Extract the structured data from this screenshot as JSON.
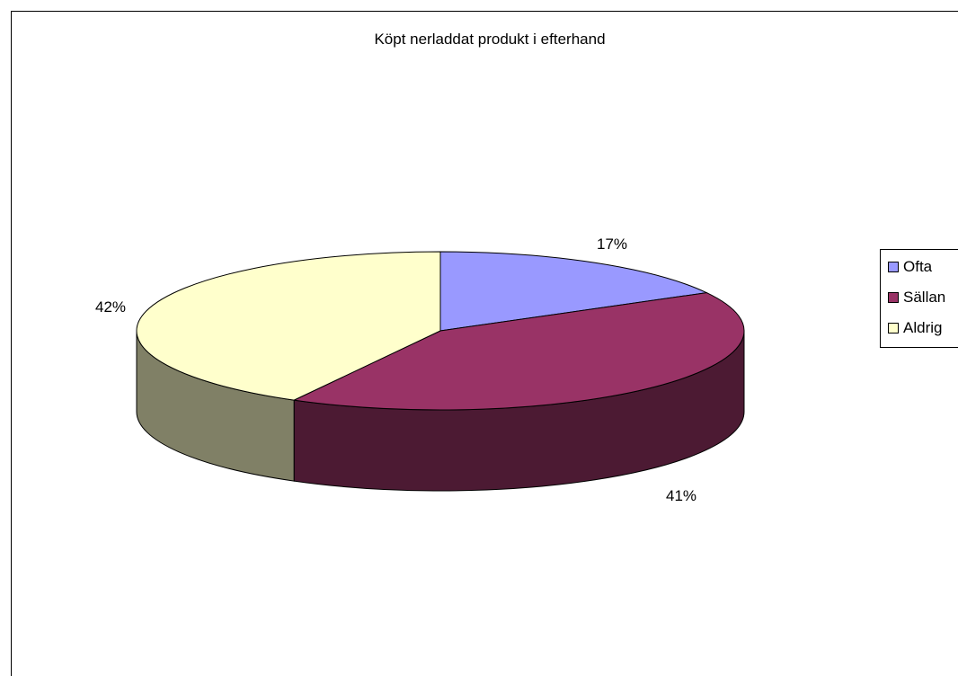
{
  "chart_data": {
    "type": "pie",
    "title": "Köpt nerladdat produkt i efterhand",
    "categories": [
      "Ofta",
      "Sällan",
      "Aldrig"
    ],
    "values": [
      17,
      41,
      42
    ],
    "data_labels": [
      "17%",
      "41%",
      "42%"
    ],
    "legend_position": "right",
    "style": "3d",
    "colors": {
      "Ofta": {
        "top": "#9999FF",
        "side": "#5b5b99"
      },
      "Sällan": {
        "top": "#993366",
        "side": "#4c1a33"
      },
      "Aldrig": {
        "top": "#FFFFCC",
        "side": "#808066"
      }
    }
  }
}
